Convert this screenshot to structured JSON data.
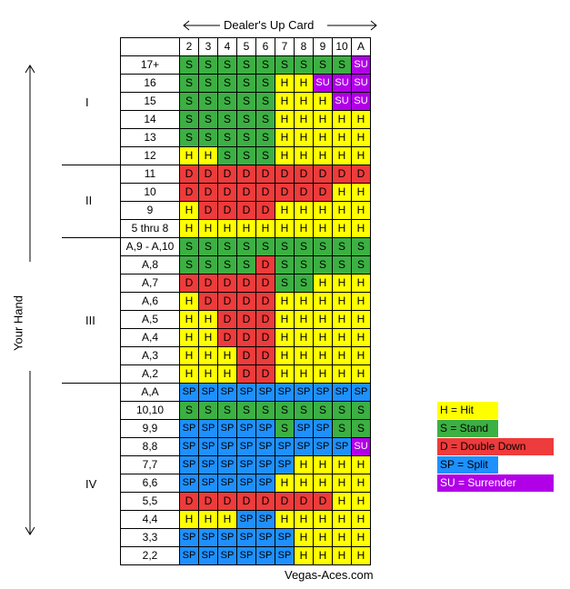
{
  "header": {
    "title": "Dealer's Up Card"
  },
  "side": {
    "label": "Your Hand"
  },
  "footer": {
    "text": "Vegas-Aces.com"
  },
  "columns": [
    "2",
    "3",
    "4",
    "5",
    "6",
    "7",
    "8",
    "9",
    "10",
    "A"
  ],
  "groups": [
    "I",
    "II",
    "III",
    "IV"
  ],
  "rows": [
    {
      "label": "17+",
      "cells": [
        "S",
        "S",
        "S",
        "S",
        "S",
        "S",
        "S",
        "S",
        "S",
        "SU"
      ]
    },
    {
      "label": "16",
      "cells": [
        "S",
        "S",
        "S",
        "S",
        "S",
        "H",
        "H",
        "SU",
        "SU",
        "SU"
      ]
    },
    {
      "label": "15",
      "cells": [
        "S",
        "S",
        "S",
        "S",
        "S",
        "H",
        "H",
        "H",
        "SU",
        "SU"
      ]
    },
    {
      "label": "14",
      "cells": [
        "S",
        "S",
        "S",
        "S",
        "S",
        "H",
        "H",
        "H",
        "H",
        "H"
      ]
    },
    {
      "label": "13",
      "cells": [
        "S",
        "S",
        "S",
        "S",
        "S",
        "H",
        "H",
        "H",
        "H",
        "H"
      ]
    },
    {
      "label": "12",
      "cells": [
        "H",
        "H",
        "S",
        "S",
        "S",
        "H",
        "H",
        "H",
        "H",
        "H"
      ]
    },
    {
      "label": "11",
      "cells": [
        "D",
        "D",
        "D",
        "D",
        "D",
        "D",
        "D",
        "D",
        "D",
        "D"
      ]
    },
    {
      "label": "10",
      "cells": [
        "D",
        "D",
        "D",
        "D",
        "D",
        "D",
        "D",
        "D",
        "H",
        "H"
      ]
    },
    {
      "label": "9",
      "cells": [
        "H",
        "D",
        "D",
        "D",
        "D",
        "H",
        "H",
        "H",
        "H",
        "H"
      ]
    },
    {
      "label": "5 thru 8",
      "cells": [
        "H",
        "H",
        "H",
        "H",
        "H",
        "H",
        "H",
        "H",
        "H",
        "H"
      ]
    },
    {
      "label": "A,9 - A,10",
      "cells": [
        "S",
        "S",
        "S",
        "S",
        "S",
        "S",
        "S",
        "S",
        "S",
        "S"
      ]
    },
    {
      "label": "A,8",
      "cells": [
        "S",
        "S",
        "S",
        "S",
        "D",
        "S",
        "S",
        "S",
        "S",
        "S"
      ]
    },
    {
      "label": "A,7",
      "cells": [
        "D",
        "D",
        "D",
        "D",
        "D",
        "S",
        "S",
        "H",
        "H",
        "H"
      ]
    },
    {
      "label": "A,6",
      "cells": [
        "H",
        "D",
        "D",
        "D",
        "D",
        "H",
        "H",
        "H",
        "H",
        "H"
      ]
    },
    {
      "label": "A,5",
      "cells": [
        "H",
        "H",
        "D",
        "D",
        "D",
        "H",
        "H",
        "H",
        "H",
        "H"
      ]
    },
    {
      "label": "A,4",
      "cells": [
        "H",
        "H",
        "D",
        "D",
        "D",
        "H",
        "H",
        "H",
        "H",
        "H"
      ]
    },
    {
      "label": "A,3",
      "cells": [
        "H",
        "H",
        "H",
        "D",
        "D",
        "H",
        "H",
        "H",
        "H",
        "H"
      ]
    },
    {
      "label": "A,2",
      "cells": [
        "H",
        "H",
        "H",
        "D",
        "D",
        "H",
        "H",
        "H",
        "H",
        "H"
      ]
    },
    {
      "label": "A,A",
      "cells": [
        "SP",
        "SP",
        "SP",
        "SP",
        "SP",
        "SP",
        "SP",
        "SP",
        "SP",
        "SP"
      ]
    },
    {
      "label": "10,10",
      "cells": [
        "S",
        "S",
        "S",
        "S",
        "S",
        "S",
        "S",
        "S",
        "S",
        "S"
      ]
    },
    {
      "label": "9,9",
      "cells": [
        "SP",
        "SP",
        "SP",
        "SP",
        "SP",
        "S",
        "SP",
        "SP",
        "S",
        "S"
      ]
    },
    {
      "label": "8,8",
      "cells": [
        "SP",
        "SP",
        "SP",
        "SP",
        "SP",
        "SP",
        "SP",
        "SP",
        "SP",
        "SU"
      ]
    },
    {
      "label": "7,7",
      "cells": [
        "SP",
        "SP",
        "SP",
        "SP",
        "SP",
        "SP",
        "H",
        "H",
        "H",
        "H"
      ]
    },
    {
      "label": "6,6",
      "cells": [
        "SP",
        "SP",
        "SP",
        "SP",
        "SP",
        "H",
        "H",
        "H",
        "H",
        "H"
      ]
    },
    {
      "label": "5,5",
      "cells": [
        "D",
        "D",
        "D",
        "D",
        "D",
        "D",
        "D",
        "D",
        "H",
        "H"
      ]
    },
    {
      "label": "4,4",
      "cells": [
        "H",
        "H",
        "H",
        "SP",
        "SP",
        "H",
        "H",
        "H",
        "H",
        "H"
      ]
    },
    {
      "label": "3,3",
      "cells": [
        "SP",
        "SP",
        "SP",
        "SP",
        "SP",
        "SP",
        "H",
        "H",
        "H",
        "H"
      ]
    },
    {
      "label": "2,2",
      "cells": [
        "SP",
        "SP",
        "SP",
        "SP",
        "SP",
        "SP",
        "H",
        "H",
        "H",
        "H"
      ]
    }
  ],
  "legend": [
    {
      "code": "H",
      "text": "H = Hit",
      "color": "#ffff00"
    },
    {
      "code": "S",
      "text": "S = Stand",
      "color": "#3cb043"
    },
    {
      "code": "D",
      "text": "D = Double Down",
      "color": "#ee3b3b"
    },
    {
      "code": "SP",
      "text": "SP = Split",
      "color": "#1e90ff"
    },
    {
      "code": "SU",
      "text": "SU = Surrender",
      "color": "#b100e8"
    }
  ]
}
